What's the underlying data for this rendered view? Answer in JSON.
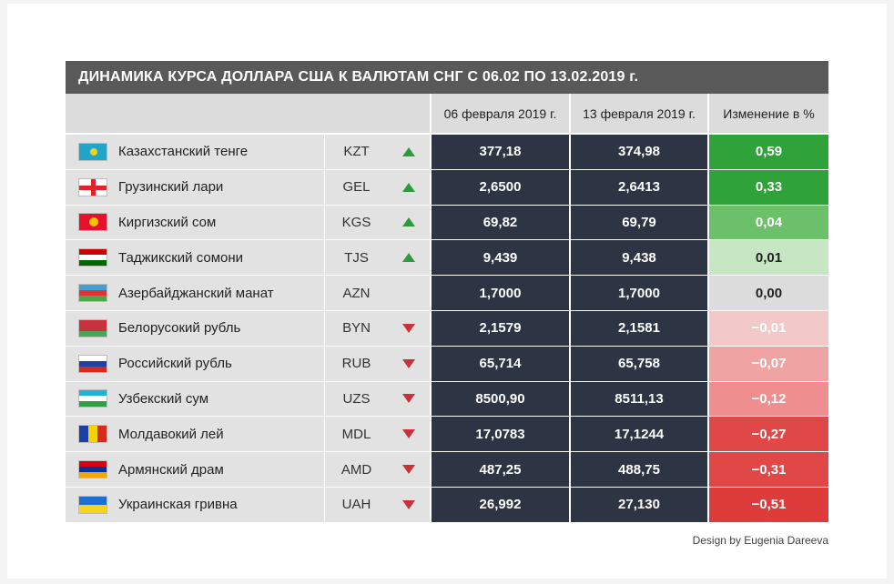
{
  "title": "ДИНАМИКА КУРСА ДОЛЛАРА США К ВАЛЮТАМ СНГ С 06.02 ПО 13.02.2019 г.",
  "headers": {
    "date1": "06 февраля 2019 г.",
    "date2": "13 февраля 2019 г.",
    "change": "Изменение в %"
  },
  "credit": "Design by Eugenia Dareeva",
  "colors": {
    "value_bg": "#2d3544",
    "arrow_up": "#2e9a3c",
    "arrow_down": "#c8323a",
    "change_scale": [
      "#2fa23a",
      "#2fa23a",
      "#6dc06a",
      "#c6e6c4",
      "#dcdcdc",
      "#f3c8c8",
      "#f0a3a3",
      "#ee8e8e",
      "#e04848",
      "#e04848",
      "#de3b3b"
    ]
  },
  "chart_data": {
    "type": "table",
    "columns": [
      "",
      "",
      "",
      "06 февраля 2019 г.",
      "13 февраля 2019 г.",
      "Изменение в %"
    ],
    "rows": [
      {
        "name": "Казахстанский тенге",
        "code": "KZT",
        "trend": "up",
        "d1": "377,18",
        "d2": "374,98",
        "change": "0,59",
        "flag": "kz"
      },
      {
        "name": "Грузинский лари",
        "code": "GEL",
        "trend": "up",
        "d1": "2,6500",
        "d2": "2,6413",
        "change": "0,33",
        "flag": "ge"
      },
      {
        "name": "Киргизский сом",
        "code": "KGS",
        "trend": "up",
        "d1": "69,82",
        "d2": "69,79",
        "change": "0,04",
        "flag": "kg"
      },
      {
        "name": "Таджикский сомони",
        "code": "TJS",
        "trend": "up",
        "d1": "9,439",
        "d2": "9,438",
        "change": "0,01",
        "flag": "tj"
      },
      {
        "name": "Азербайджанский манат",
        "code": "AZN",
        "trend": "none",
        "d1": "1,7000",
        "d2": "1,7000",
        "change": "0,00",
        "flag": "az"
      },
      {
        "name": "Белорусокий рубль",
        "code": "BYN",
        "trend": "down",
        "d1": "2,1579",
        "d2": "2,1581",
        "change": "−0,01",
        "flag": "by"
      },
      {
        "name": "Российский рубль",
        "code": "RUB",
        "trend": "down",
        "d1": "65,714",
        "d2": "65,758",
        "change": "−0,07",
        "flag": "ru"
      },
      {
        "name": "Узбекский сум",
        "code": "UZS",
        "trend": "down",
        "d1": "8500,90",
        "d2": "8511,13",
        "change": "−0,12",
        "flag": "uz"
      },
      {
        "name": "Молдавокий лей",
        "code": "MDL",
        "trend": "down",
        "d1": "17,0783",
        "d2": "17,1244",
        "change": "−0,27",
        "flag": "md"
      },
      {
        "name": "Армянский драм",
        "code": "AMD",
        "trend": "down",
        "d1": "487,25",
        "d2": "488,75",
        "change": "−0,31",
        "flag": "am"
      },
      {
        "name": "Украинская гривна",
        "code": "UAH",
        "trend": "down",
        "d1": "26,992",
        "d2": "27,130",
        "change": "−0,51",
        "flag": "ua"
      }
    ]
  }
}
